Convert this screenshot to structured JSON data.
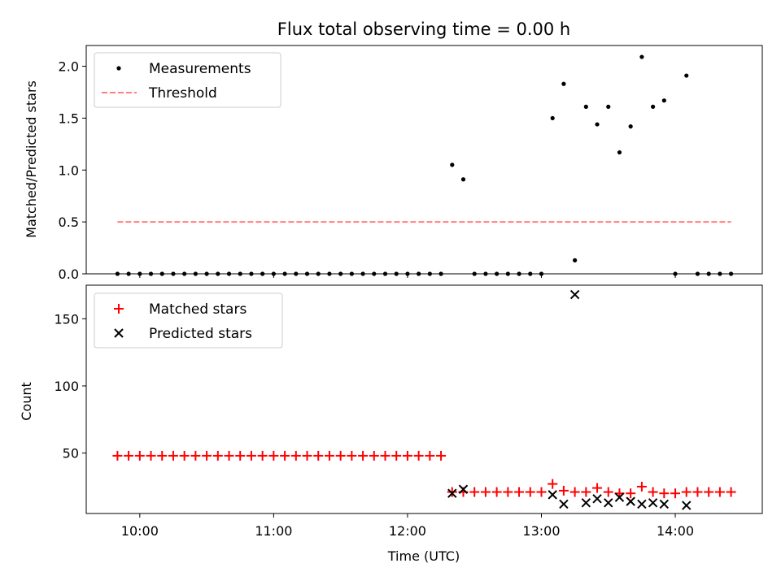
{
  "title": "Flux total observing time = 0.00 h",
  "colors": {
    "measurements": "#000000",
    "threshold": "#ff7f7f",
    "matched": "#ff0000",
    "predicted": "#000000"
  },
  "chart_data": [
    {
      "type": "scatter",
      "ylabel": "Matched/Predicted stars",
      "xlim": [
        "09:36",
        "14:39"
      ],
      "ylim": [
        0,
        2.2
      ],
      "yticks": [
        0.0,
        0.5,
        1.0,
        1.5,
        2.0
      ],
      "ytick_labels": [
        "0.0",
        "0.5",
        "1.0",
        "1.5",
        "2.0"
      ],
      "legend_position": "upper-left",
      "series": [
        {
          "name": "Measurements",
          "marker": "dot",
          "points": [
            [
              "09:50",
              0
            ],
            [
              "09:55",
              0
            ],
            [
              "10:00",
              0
            ],
            [
              "10:05",
              0
            ],
            [
              "10:10",
              0
            ],
            [
              "10:15",
              0
            ],
            [
              "10:20",
              0
            ],
            [
              "10:25",
              0
            ],
            [
              "10:30",
              0
            ],
            [
              "10:35",
              0
            ],
            [
              "10:40",
              0
            ],
            [
              "10:45",
              0
            ],
            [
              "10:50",
              0
            ],
            [
              "10:55",
              0
            ],
            [
              "11:00",
              0
            ],
            [
              "11:05",
              0
            ],
            [
              "11:10",
              0
            ],
            [
              "11:15",
              0
            ],
            [
              "11:20",
              0
            ],
            [
              "11:25",
              0
            ],
            [
              "11:30",
              0
            ],
            [
              "11:35",
              0
            ],
            [
              "11:40",
              0
            ],
            [
              "11:45",
              0
            ],
            [
              "11:50",
              0
            ],
            [
              "11:55",
              0
            ],
            [
              "12:00",
              0
            ],
            [
              "12:05",
              0
            ],
            [
              "12:10",
              0
            ],
            [
              "12:15",
              0
            ],
            [
              "12:20",
              1.05
            ],
            [
              "12:25",
              0.91
            ],
            [
              "12:30",
              0
            ],
            [
              "12:35",
              0
            ],
            [
              "12:40",
              0
            ],
            [
              "12:45",
              0
            ],
            [
              "12:50",
              0
            ],
            [
              "12:55",
              0
            ],
            [
              "13:00",
              0
            ],
            [
              "13:05",
              1.5
            ],
            [
              "13:10",
              1.83
            ],
            [
              "13:15",
              0.13
            ],
            [
              "13:20",
              1.61
            ],
            [
              "13:25",
              1.44
            ],
            [
              "13:30",
              1.61
            ],
            [
              "13:35",
              1.17
            ],
            [
              "13:40",
              1.42
            ],
            [
              "13:45",
              2.09
            ],
            [
              "13:50",
              1.61
            ],
            [
              "13:55",
              1.67
            ],
            [
              "14:00",
              0
            ],
            [
              "14:05",
              1.91
            ],
            [
              "14:10",
              0
            ],
            [
              "14:15",
              0
            ],
            [
              "14:20",
              0
            ],
            [
              "14:25",
              0
            ]
          ]
        },
        {
          "name": "Threshold",
          "type": "line",
          "style": "dashed",
          "points": [
            [
              "09:50",
              0.5
            ],
            [
              "14:25",
              0.5
            ]
          ]
        }
      ]
    },
    {
      "type": "scatter",
      "xlabel": "Time (UTC)",
      "ylabel": "Count",
      "xlim": [
        "09:36",
        "14:39"
      ],
      "ylim": [
        5,
        175
      ],
      "yticks": [
        50,
        100,
        150
      ],
      "ytick_labels": [
        "50",
        "100",
        "150"
      ],
      "xticks": [
        "10:00",
        "11:00",
        "12:00",
        "13:00",
        "14:00"
      ],
      "legend_position": "upper-left",
      "series": [
        {
          "name": "Matched stars",
          "marker": "plus",
          "points": [
            [
              "09:50",
              48
            ],
            [
              "09:55",
              48
            ],
            [
              "10:00",
              48
            ],
            [
              "10:05",
              48
            ],
            [
              "10:10",
              48
            ],
            [
              "10:15",
              48
            ],
            [
              "10:20",
              48
            ],
            [
              "10:25",
              48
            ],
            [
              "10:30",
              48
            ],
            [
              "10:35",
              48
            ],
            [
              "10:40",
              48
            ],
            [
              "10:45",
              48
            ],
            [
              "10:50",
              48
            ],
            [
              "10:55",
              48
            ],
            [
              "11:00",
              48
            ],
            [
              "11:05",
              48
            ],
            [
              "11:10",
              48
            ],
            [
              "11:15",
              48
            ],
            [
              "11:20",
              48
            ],
            [
              "11:25",
              48
            ],
            [
              "11:30",
              48
            ],
            [
              "11:35",
              48
            ],
            [
              "11:40",
              48
            ],
            [
              "11:45",
              48
            ],
            [
              "11:50",
              48
            ],
            [
              "11:55",
              48
            ],
            [
              "12:00",
              48
            ],
            [
              "12:05",
              48
            ],
            [
              "12:10",
              48
            ],
            [
              "12:15",
              48
            ],
            [
              "12:20",
              21
            ],
            [
              "12:25",
              21
            ],
            [
              "12:30",
              21
            ],
            [
              "12:35",
              21
            ],
            [
              "12:40",
              21
            ],
            [
              "12:45",
              21
            ],
            [
              "12:50",
              21
            ],
            [
              "12:55",
              21
            ],
            [
              "13:00",
              21
            ],
            [
              "13:05",
              27
            ],
            [
              "13:10",
              22
            ],
            [
              "13:15",
              21
            ],
            [
              "13:20",
              21
            ],
            [
              "13:25",
              24
            ],
            [
              "13:30",
              21
            ],
            [
              "13:35",
              20
            ],
            [
              "13:40",
              20
            ],
            [
              "13:45",
              25
            ],
            [
              "13:50",
              21
            ],
            [
              "13:55",
              20
            ],
            [
              "14:00",
              20
            ],
            [
              "14:05",
              21
            ],
            [
              "14:10",
              21
            ],
            [
              "14:15",
              21
            ],
            [
              "14:20",
              21
            ],
            [
              "14:25",
              21
            ]
          ]
        },
        {
          "name": "Predicted stars",
          "marker": "x",
          "points": [
            [
              "12:20",
              20
            ],
            [
              "12:25",
              23
            ],
            [
              "13:05",
              19
            ],
            [
              "13:10",
              12
            ],
            [
              "13:15",
              168
            ],
            [
              "13:20",
              13
            ],
            [
              "13:25",
              16
            ],
            [
              "13:30",
              13
            ],
            [
              "13:35",
              17
            ],
            [
              "13:40",
              14
            ],
            [
              "13:45",
              12
            ],
            [
              "13:50",
              13
            ],
            [
              "13:55",
              12
            ],
            [
              "14:05",
              11
            ]
          ]
        }
      ]
    }
  ]
}
